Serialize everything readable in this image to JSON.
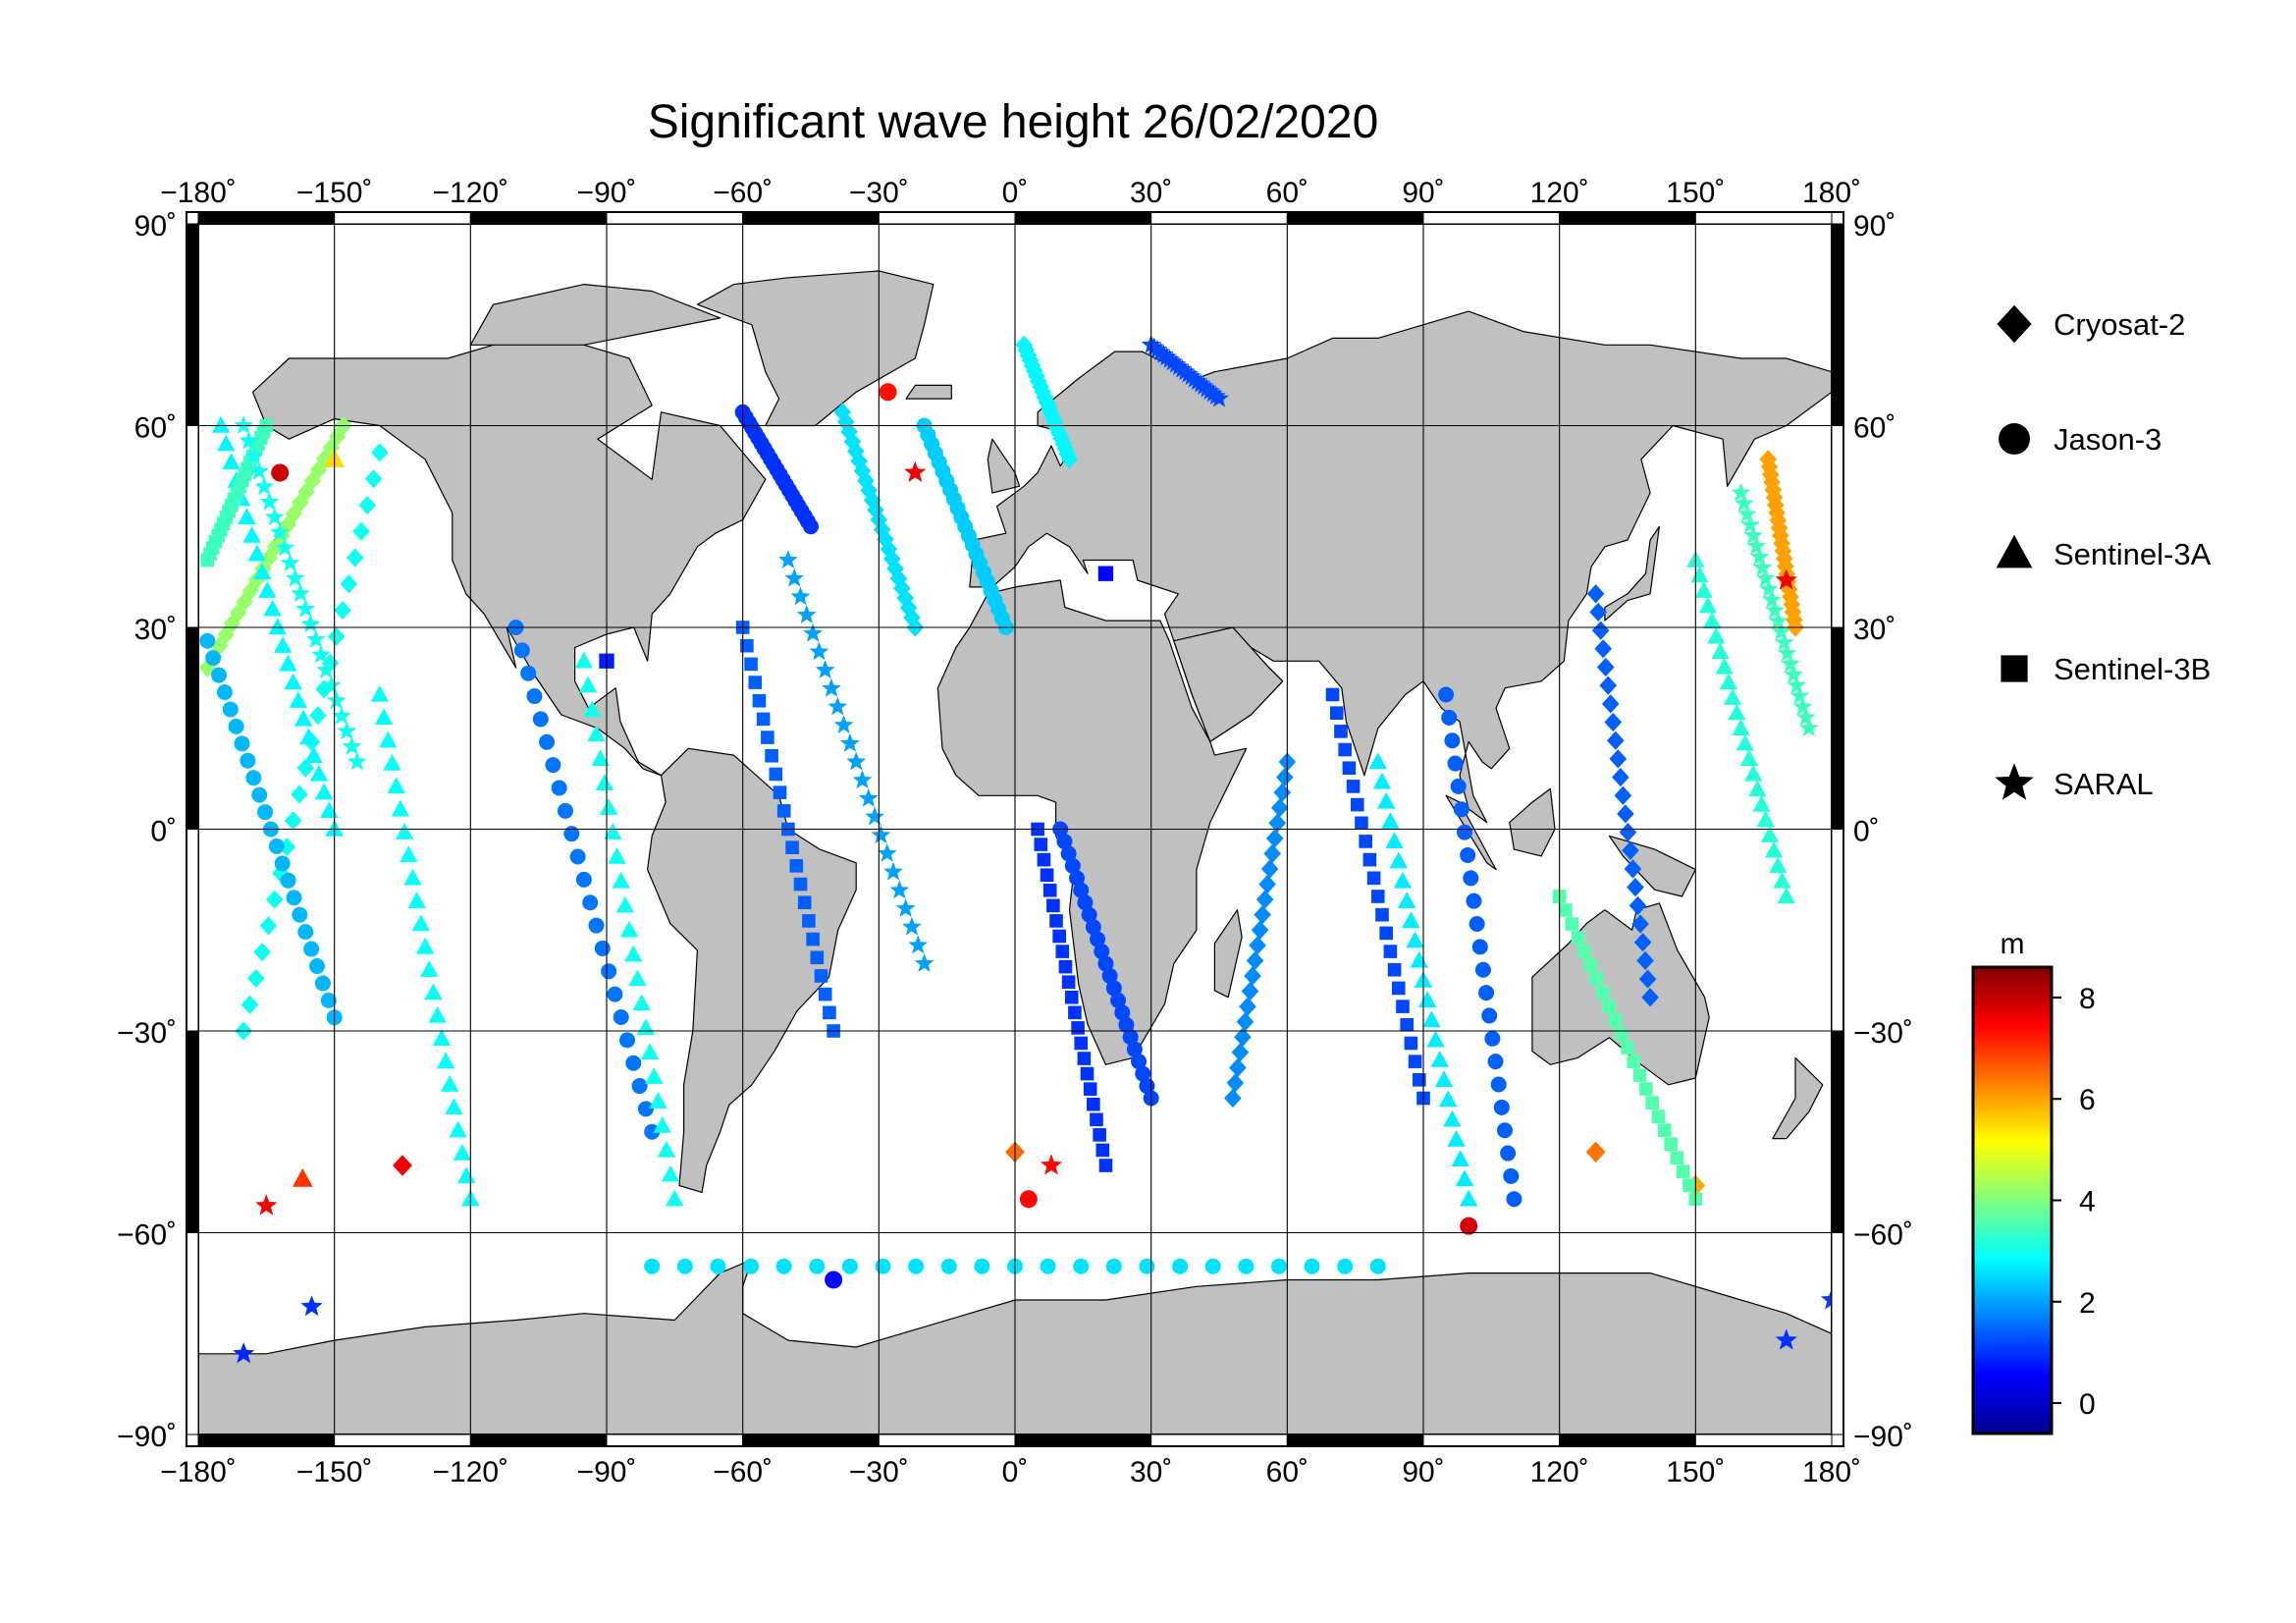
{
  "title": "Significant wave height 26/02/2020",
  "lon_ticks": [
    {
      "value": -180,
      "label": "−180˚"
    },
    {
      "value": -150,
      "label": "−150˚"
    },
    {
      "value": -120,
      "label": "−120˚"
    },
    {
      "value": -90,
      "label": "−90˚"
    },
    {
      "value": -60,
      "label": "−60˚"
    },
    {
      "value": -30,
      "label": "−30˚"
    },
    {
      "value": 0,
      "label": "0˚"
    },
    {
      "value": 30,
      "label": "30˚"
    },
    {
      "value": 60,
      "label": "60˚"
    },
    {
      "value": 90,
      "label": "90˚"
    },
    {
      "value": 120,
      "label": "120˚"
    },
    {
      "value": 150,
      "label": "150˚"
    },
    {
      "value": 180,
      "label": "180˚"
    }
  ],
  "lat_ticks": [
    {
      "value": 90,
      "label": "90˚"
    },
    {
      "value": 60,
      "label": "60˚"
    },
    {
      "value": 30,
      "label": "30˚"
    },
    {
      "value": 0,
      "label": "0˚"
    },
    {
      "value": -30,
      "label": "−30˚"
    },
    {
      "value": -60,
      "label": "−60˚"
    },
    {
      "value": -90,
      "label": "−90˚"
    }
  ],
  "legend": [
    {
      "name": "Cryosat-2",
      "symbol": "diamond"
    },
    {
      "name": "Jason-3",
      "symbol": "circle"
    },
    {
      "name": "Sentinel-3A",
      "symbol": "triangle"
    },
    {
      "name": "Sentinel-3B",
      "symbol": "square"
    },
    {
      "name": "SARAL",
      "symbol": "star"
    }
  ],
  "colorbar": {
    "unit": "m",
    "min": -0.6,
    "max": 8.6,
    "ticks": [
      0,
      2,
      4,
      6,
      8
    ],
    "colormap": [
      "#00008f",
      "#0000ff",
      "#0080ff",
      "#00ffff",
      "#80ff80",
      "#ffff00",
      "#ff8000",
      "#ff0000",
      "#800000"
    ]
  },
  "colors": {
    "land": "#c0c0c0",
    "ocean": "#ffffff",
    "grid": "#000000"
  },
  "chart_data": {
    "type": "scatter",
    "title": "Significant wave height 26/02/2020",
    "projection": "equirectangular",
    "xlim": [
      -180,
      180
    ],
    "ylim": [
      -90,
      90
    ],
    "value_unit": "m",
    "value_range": [
      -0.6,
      8.6
    ],
    "grid": true,
    "legend_placement": "right",
    "series": [
      {
        "name": "Cryosat-2",
        "symbol": "diamond",
        "tracks": [
          {
            "from": [
              -148,
              60
            ],
            "to": [
              -178,
              24
            ],
            "v": 4.2
          },
          {
            "from": [
              -140,
              56
            ],
            "to": [
              -170,
              -30
            ],
            "v": 3.0
          },
          {
            "from": [
              -38,
              62
            ],
            "to": [
              -22,
              30
            ],
            "v": 2.6
          },
          {
            "from": [
              2,
              72
            ],
            "to": [
              12,
              55
            ],
            "v": 2.8
          },
          {
            "from": [
              60,
              10
            ],
            "to": [
              48,
              -40
            ],
            "v": 1.8
          },
          {
            "from": [
              128,
              35
            ],
            "to": [
              140,
              -25
            ],
            "v": 1.4
          },
          {
            "from": [
              166,
              55
            ],
            "to": [
              172,
              30
            ],
            "v": 6.0
          }
        ],
        "points": [
          {
            "lon": -135,
            "lat": -50,
            "v": 7.6
          },
          {
            "lon": 0,
            "lat": -48,
            "v": 6.5
          },
          {
            "lon": 128,
            "lat": -48,
            "v": 6.4
          },
          {
            "lon": 150,
            "lat": -53,
            "v": 5.9
          }
        ]
      },
      {
        "name": "Jason-3",
        "symbol": "circle",
        "tracks": [
          {
            "from": [
              -178,
              28
            ],
            "to": [
              -150,
              -28
            ],
            "v": 2.2
          },
          {
            "from": [
              -110,
              30
            ],
            "to": [
              -80,
              -45
            ],
            "v": 1.6
          },
          {
            "from": [
              -60,
              62
            ],
            "to": [
              -45,
              45
            ],
            "v": 1.0
          },
          {
            "from": [
              -20,
              60
            ],
            "to": [
              -2,
              30
            ],
            "v": 2.4
          },
          {
            "from": [
              10,
              0
            ],
            "to": [
              30,
              -40
            ],
            "v": 1.2
          },
          {
            "from": [
              95,
              20
            ],
            "to": [
              110,
              -55
            ],
            "v": 1.4
          },
          {
            "from": [
              -80,
              -65
            ],
            "to": [
              80,
              -65
            ],
            "v": 2.6
          }
        ],
        "points": [
          {
            "lon": -162,
            "lat": 53,
            "v": 7.9
          },
          {
            "lon": -28,
            "lat": 65,
            "v": 7.3
          },
          {
            "lon": 3,
            "lat": -55,
            "v": 7.4
          },
          {
            "lon": 100,
            "lat": -59,
            "v": 7.8
          },
          {
            "lon": -40,
            "lat": -67,
            "v": 0.6
          }
        ]
      },
      {
        "name": "Sentinel-3A",
        "symbol": "triangle",
        "tracks": [
          {
            "from": [
              -175,
              60
            ],
            "to": [
              -150,
              0
            ],
            "v": 2.8
          },
          {
            "from": [
              -140,
              20
            ],
            "to": [
              -120,
              -55
            ],
            "v": 2.9
          },
          {
            "from": [
              -95,
              25
            ],
            "to": [
              -75,
              -55
            ],
            "v": 3.0
          },
          {
            "from": [
              80,
              10
            ],
            "to": [
              100,
              -55
            ],
            "v": 2.7
          },
          {
            "from": [
              150,
              40
            ],
            "to": [
              170,
              -10
            ],
            "v": 3.2
          }
        ],
        "points": [
          {
            "lon": -157,
            "lat": -52,
            "v": 7.0
          },
          {
            "lon": -150,
            "lat": 55,
            "v": 5.5
          }
        ]
      },
      {
        "name": "Sentinel-3B",
        "symbol": "square",
        "tracks": [
          {
            "from": [
              -165,
              60
            ],
            "to": [
              -178,
              40
            ],
            "v": 3.4
          },
          {
            "from": [
              -60,
              30
            ],
            "to": [
              -40,
              -30
            ],
            "v": 1.4
          },
          {
            "from": [
              5,
              0
            ],
            "to": [
              20,
              -50
            ],
            "v": 1.0
          },
          {
            "from": [
              70,
              20
            ],
            "to": [
              90,
              -40
            ],
            "v": 1.2
          },
          {
            "from": [
              120,
              -10
            ],
            "to": [
              150,
              -55
            ],
            "v": 3.6
          }
        ],
        "points": [
          {
            "lon": -90,
            "lat": 25,
            "v": 0.8
          },
          {
            "lon": 20,
            "lat": 38,
            "v": 0.6
          }
        ]
      },
      {
        "name": "SARAL",
        "symbol": "star",
        "tracks": [
          {
            "from": [
              -170,
              60
            ],
            "to": [
              -145,
              10
            ],
            "v": 3.0
          },
          {
            "from": [
              -50,
              40
            ],
            "to": [
              -20,
              -20
            ],
            "v": 2.0
          },
          {
            "from": [
              30,
              72
            ],
            "to": [
              45,
              64
            ],
            "v": 1.2
          },
          {
            "from": [
              160,
              50
            ],
            "to": [
              175,
              15
            ],
            "v": 3.4
          }
        ],
        "points": [
          {
            "lon": -165,
            "lat": -56,
            "v": 7.5
          },
          {
            "lon": -22,
            "lat": 53,
            "v": 7.6
          },
          {
            "lon": 8,
            "lat": -50,
            "v": 7.4
          },
          {
            "lon": 170,
            "lat": 37,
            "v": 7.6
          },
          {
            "lon": -170,
            "lat": -78,
            "v": 0.9
          },
          {
            "lon": -155,
            "lat": -71,
            "v": 1.0
          },
          {
            "lon": 170,
            "lat": -76,
            "v": 1.0
          },
          {
            "lon": 180,
            "lat": -70,
            "v": 1.1
          }
        ]
      }
    ]
  }
}
